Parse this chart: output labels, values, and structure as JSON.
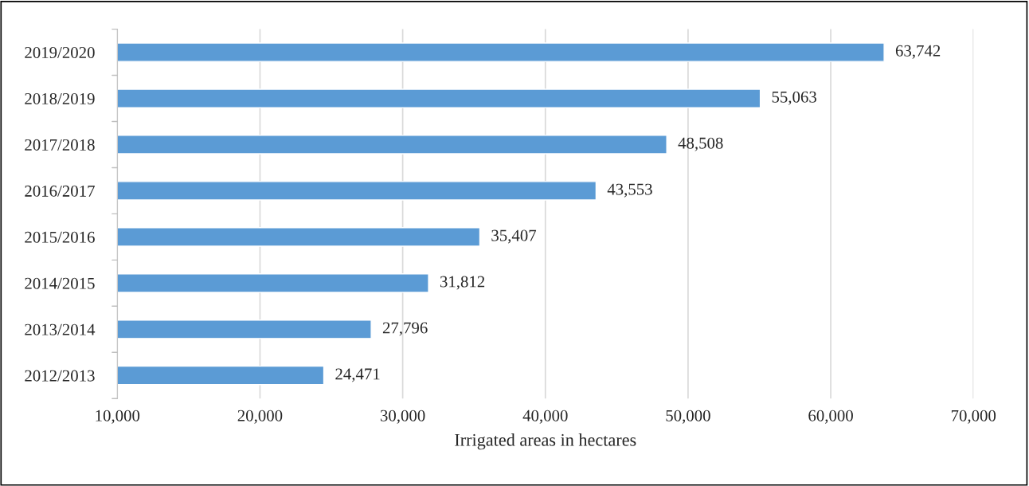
{
  "chart_data": {
    "type": "bar",
    "orientation": "horizontal",
    "xlabel": "Irrigated areas in hectares",
    "categories": [
      "2019/2020",
      "2018/2019",
      "2017/2018",
      "2016/2017",
      "2015/2016",
      "2014/2015",
      "2013/2014",
      "2012/2013"
    ],
    "values": [
      63742,
      55063,
      48508,
      43553,
      35407,
      31812,
      27796,
      24471
    ],
    "value_labels": [
      "63,742",
      "55,063",
      "48,508",
      "43,553",
      "35,407",
      "31,812",
      "27,796",
      "24,471"
    ],
    "color": "#5b9bd5",
    "xlim": [
      10000,
      70000
    ],
    "xticks": [
      {
        "value": 10000,
        "label": "10,000"
      },
      {
        "value": 20000,
        "label": "20,000"
      },
      {
        "value": 30000,
        "label": "30,000"
      },
      {
        "value": 40000,
        "label": "40,000"
      },
      {
        "value": 50000,
        "label": "50,000"
      },
      {
        "value": 60000,
        "label": "60,000"
      },
      {
        "value": 70000,
        "label": "70,000"
      }
    ],
    "grid": "x"
  }
}
